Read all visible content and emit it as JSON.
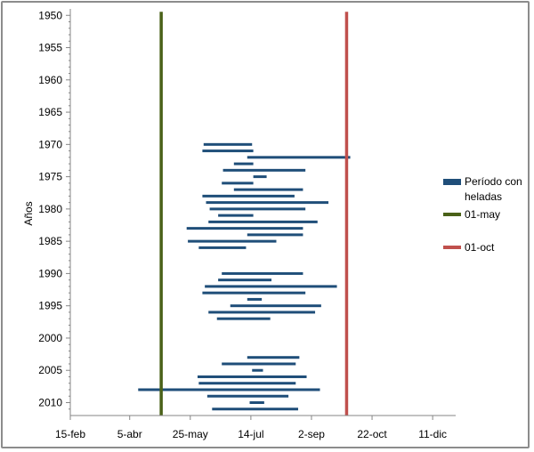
{
  "chart_data": {
    "type": "bar",
    "orientation": "horizontal-range",
    "title": "",
    "ylabel": "Años",
    "xlabel": "",
    "y_axis": {
      "min": 1949,
      "max": 2012,
      "reversed": true,
      "tick_labels": [
        "1950",
        "1955",
        "1960",
        "1965",
        "1970",
        "1975",
        "1980",
        "1985",
        "1990",
        "1995",
        "2000",
        "2005",
        "2010"
      ],
      "tick_values": [
        1950,
        1955,
        1960,
        1965,
        1970,
        1975,
        1980,
        1985,
        1990,
        1995,
        2000,
        2005,
        2010
      ]
    },
    "x_axis": {
      "min_date": "15-feb",
      "max_date": "30-dec",
      "tick_labels": [
        "15-feb",
        "5-abr",
        "25-may",
        "14-jul",
        "2-sep",
        "22-oct",
        "11-dic"
      ],
      "tick_dates": [
        "02-15",
        "04-05",
        "05-25",
        "07-14",
        "09-02",
        "10-22",
        "12-11"
      ]
    },
    "grid": false,
    "legend_position": "right",
    "series": [
      {
        "name": "Período con heladas",
        "color": "#1f4e79",
        "ranges": [
          {
            "year": 1970,
            "start": "06-05",
            "end": "07-15"
          },
          {
            "year": 1971,
            "start": "06-04",
            "end": "07-16"
          },
          {
            "year": 1972,
            "start": "07-11",
            "end": "10-04"
          },
          {
            "year": 1973,
            "start": "06-30",
            "end": "07-16"
          },
          {
            "year": 1974,
            "start": "06-21",
            "end": "08-28"
          },
          {
            "year": 1975,
            "start": "07-16",
            "end": "07-27"
          },
          {
            "year": 1976,
            "start": "06-20",
            "end": "07-16"
          },
          {
            "year": 1977,
            "start": "06-30",
            "end": "08-26"
          },
          {
            "year": 1978,
            "start": "06-04",
            "end": "08-19"
          },
          {
            "year": 1979,
            "start": "06-07",
            "end": "09-16"
          },
          {
            "year": 1980,
            "start": "06-10",
            "end": "08-28"
          },
          {
            "year": 1981,
            "start": "06-17",
            "end": "07-16"
          },
          {
            "year": 1982,
            "start": "06-09",
            "end": "09-07"
          },
          {
            "year": 1983,
            "start": "05-22",
            "end": "08-26"
          },
          {
            "year": 1984,
            "start": "07-11",
            "end": "08-26"
          },
          {
            "year": 1985,
            "start": "05-23",
            "end": "08-04"
          },
          {
            "year": 1986,
            "start": "06-01",
            "end": "07-10"
          },
          {
            "year": 1990,
            "start": "06-20",
            "end": "08-26"
          },
          {
            "year": 1991,
            "start": "06-17",
            "end": "07-31"
          },
          {
            "year": 1992,
            "start": "06-06",
            "end": "09-23"
          },
          {
            "year": 1993,
            "start": "06-04",
            "end": "08-28"
          },
          {
            "year": 1994,
            "start": "07-11",
            "end": "07-23"
          },
          {
            "year": 1995,
            "start": "06-27",
            "end": "09-10"
          },
          {
            "year": 1996,
            "start": "06-09",
            "end": "09-05"
          },
          {
            "year": 1997,
            "start": "06-16",
            "end": "07-30"
          },
          {
            "year": 2003,
            "start": "07-11",
            "end": "08-23"
          },
          {
            "year": 2004,
            "start": "06-20",
            "end": "08-20"
          },
          {
            "year": 2005,
            "start": "07-15",
            "end": "07-24"
          },
          {
            "year": 2006,
            "start": "05-31",
            "end": "08-29"
          },
          {
            "year": 2007,
            "start": "06-01",
            "end": "08-20"
          },
          {
            "year": 2008,
            "start": "04-12",
            "end": "09-09"
          },
          {
            "year": 2009,
            "start": "06-08",
            "end": "08-14"
          },
          {
            "year": 2010,
            "start": "07-13",
            "end": "07-25"
          },
          {
            "year": 2011,
            "start": "06-12",
            "end": "08-22"
          }
        ]
      },
      {
        "name": "01-may",
        "color": "#4a6118",
        "date": "05-01"
      },
      {
        "name": "01-oct",
        "color": "#c0504d",
        "date": "10-01"
      }
    ]
  },
  "legend": {
    "items": [
      {
        "label_line1": "Período con",
        "label_line2": "heladas"
      },
      {
        "label_line1": "01-may",
        "label_line2": ""
      },
      {
        "label_line1": "01-oct",
        "label_line2": ""
      }
    ]
  }
}
